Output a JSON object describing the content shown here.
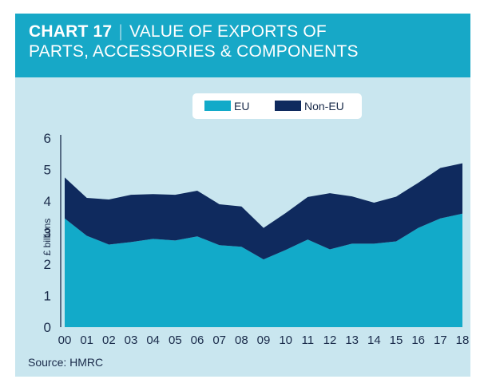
{
  "header": {
    "chart_number": "CHART 17",
    "separator": "|",
    "title_line1": "VALUE OF EXPORTS OF",
    "title_line2": "PARTS, ACCESSORIES & COMPONENTS"
  },
  "source": "Source: HMRC",
  "colors": {
    "header_bg": "#17a8c7",
    "card_bg": "#c9e6ef",
    "eu": "#12aac9",
    "non_eu": "#0f2a5e",
    "text": "#1a2b4a"
  },
  "chart_data": {
    "type": "area",
    "stacked": true,
    "title": "VALUE OF EXPORTS OF PARTS, ACCESSORIES & COMPONENTS",
    "xlabel": "",
    "ylabel": "£ billions",
    "ylim": [
      0,
      6
    ],
    "yticks": [
      "0",
      "1",
      "2",
      "3",
      "4",
      "5",
      "6"
    ],
    "categories": [
      "00",
      "01",
      "02",
      "03",
      "04",
      "05",
      "06",
      "07",
      "08",
      "09",
      "10",
      "11",
      "12",
      "13",
      "14",
      "15",
      "16",
      "17",
      "18"
    ],
    "series": [
      {
        "name": "EU",
        "color": "#12aac9",
        "values": [
          3.45,
          2.9,
          2.62,
          2.7,
          2.8,
          2.75,
          2.88,
          2.6,
          2.55,
          2.15,
          2.45,
          2.78,
          2.47,
          2.65,
          2.65,
          2.72,
          3.15,
          3.45,
          3.6
        ]
      },
      {
        "name": "Non-EU",
        "color": "#0f2a5e",
        "values": [
          1.3,
          1.2,
          1.43,
          1.5,
          1.42,
          1.45,
          1.45,
          1.3,
          1.28,
          1.0,
          1.17,
          1.35,
          1.78,
          1.5,
          1.3,
          1.42,
          1.43,
          1.6,
          1.6
        ]
      }
    ],
    "legend": "top-center",
    "grid": false
  }
}
